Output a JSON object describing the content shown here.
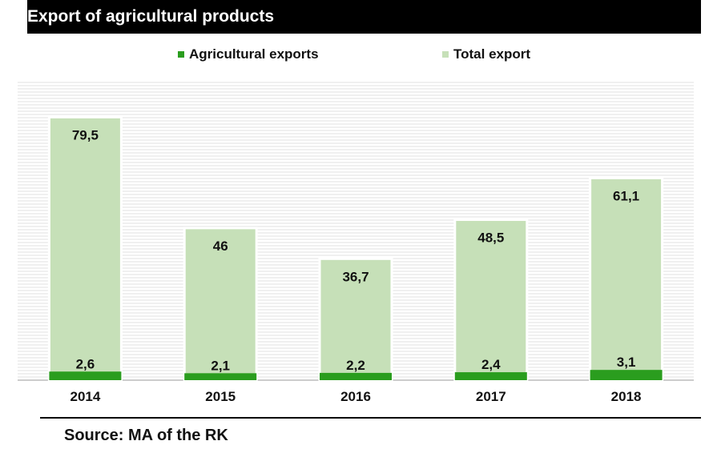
{
  "title": "Export of agricultural products",
  "source": "Source: MA of the RK",
  "colors": {
    "agricultural": "#2a9d1e",
    "total": "#c6e0b8",
    "title_bg": "#000000",
    "title_text": "#ffffff"
  },
  "chart_data": {
    "type": "bar",
    "stacked": false,
    "title": "Export of agricultural products",
    "categories": [
      "2014",
      "2015",
      "2016",
      "2017",
      "2018"
    ],
    "series": [
      {
        "name": "Agricultural exports",
        "values": [
          2.6,
          2.1,
          2.2,
          2.4,
          3.1
        ],
        "labels": [
          "2,6",
          "2,1",
          "2,2",
          "2,4",
          "3,1"
        ]
      },
      {
        "name": "Total export",
        "values": [
          79.5,
          46,
          36.7,
          48.5,
          61.1
        ],
        "labels": [
          "79,5",
          "46",
          "36,7",
          "48,5",
          "61,1"
        ]
      }
    ],
    "ylim": [
      0,
      90
    ],
    "grid": true,
    "legend": "top"
  }
}
